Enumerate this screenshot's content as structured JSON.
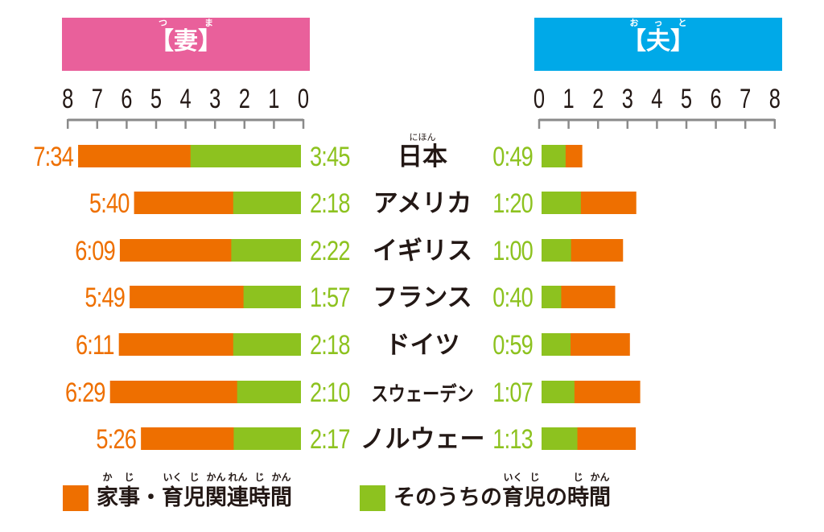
{
  "colors": {
    "housework": "#EE6F00",
    "childcare": "#8DC21F",
    "wife_header": "#E9609B",
    "husband_header": "#00A9E8",
    "text": "#231815",
    "axis": "#8A8A8A"
  },
  "headers": {
    "wife": {
      "label": "【妻】",
      "base": "妻",
      "ruby": "つま"
    },
    "husband": {
      "label": "【夫】",
      "base": "夫",
      "ruby": "おっと"
    }
  },
  "legend": [
    {
      "label": "家事・育児関連時間",
      "parts": [
        [
          "家",
          "か"
        ],
        [
          "事",
          "じ"
        ],
        [
          "・",
          ""
        ],
        [
          "育",
          "いく"
        ],
        [
          "児",
          "じ"
        ],
        [
          "関",
          "かん"
        ],
        [
          "連",
          "れん"
        ],
        [
          "時",
          "じ"
        ],
        [
          "間",
          "かん"
        ]
      ]
    },
    {
      "label": "そのうちの育児の時間",
      "parts": [
        [
          "そのうちの",
          ""
        ],
        [
          "育",
          "いく"
        ],
        [
          "児",
          "じ"
        ],
        [
          "の",
          ""
        ],
        [
          "時",
          "じ"
        ],
        [
          "間",
          "かん"
        ]
      ]
    }
  ],
  "chart_data": {
    "type": "bar",
    "orientation": "horizontal-butterfly",
    "unit": "hours",
    "categories": [
      "日本",
      "アメリカ",
      "イギリス",
      "フランス",
      "ドイツ",
      "スウェーデン",
      "ノルウェー"
    ],
    "category_ruby": {
      "日本": "にほん"
    },
    "wife_axis": {
      "ticks": [
        "8",
        "7",
        "6",
        "5",
        "4",
        "3",
        "2",
        "1",
        "0"
      ],
      "range": [
        0,
        8
      ],
      "direction": "right-to-left"
    },
    "husband_axis": {
      "ticks": [
        "0",
        "1",
        "2",
        "3",
        "4",
        "5",
        "6",
        "7",
        "8"
      ],
      "range": [
        0,
        8
      ]
    },
    "series": [
      {
        "name": "家事・育児関連時間",
        "side": "wife",
        "values": [
          "7:34",
          "5:40",
          "6:09",
          "5:49",
          "6:11",
          "6:29",
          "5:26"
        ]
      },
      {
        "name": "そのうちの育児の時間",
        "side": "wife",
        "values": [
          "3:45",
          "2:18",
          "2:22",
          "1:57",
          "2:18",
          "2:10",
          "2:17"
        ]
      },
      {
        "name": "家事・育児関連時間",
        "side": "husband",
        "values": [
          "1:23",
          "3:13",
          "2:46",
          "2:30",
          "3:00",
          "3:21",
          "3:12"
        ]
      },
      {
        "name": "そのうちの育児の時間",
        "side": "husband",
        "values": [
          "0:49",
          "1:20",
          "1:00",
          "0:40",
          "0:59",
          "1:07",
          "1:13"
        ]
      }
    ]
  }
}
